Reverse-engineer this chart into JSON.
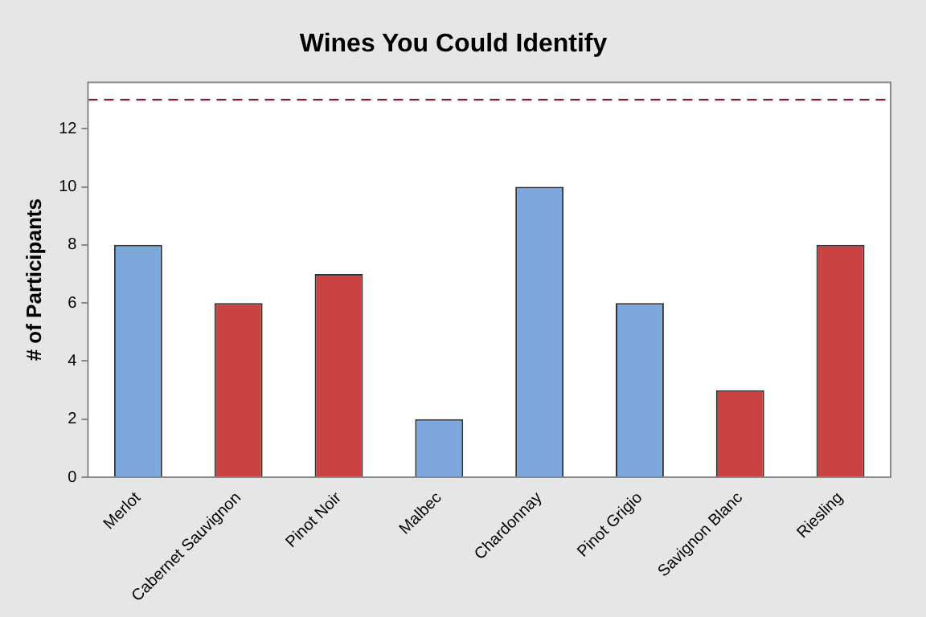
{
  "chart_data": {
    "type": "bar",
    "title": "Wines You Could Identify",
    "ylabel": "# of Participants",
    "categories": [
      "Merlot",
      "Cabernet Sauvignon",
      "Pinot Noir",
      "Malbec",
      "Chardonnay",
      "Pinot Grigio",
      "Savignon Blanc",
      "Riesling"
    ],
    "values": [
      8,
      6,
      7,
      2,
      10,
      6,
      3,
      8
    ],
    "colors": [
      "#7ba7dc",
      "#c94343",
      "#c94343",
      "#7ba7dc",
      "#7ba7dc",
      "#7ba7dc",
      "#c94343",
      "#c94343"
    ],
    "ylim": [
      0,
      13.6
    ],
    "yticks": [
      0,
      2,
      4,
      6,
      8,
      10,
      12
    ],
    "grid": false,
    "legend": false,
    "ref_lines": [
      {
        "axis": "y",
        "value": 13,
        "color": "#8b1a2a",
        "line_style": "dashed"
      }
    ]
  }
}
